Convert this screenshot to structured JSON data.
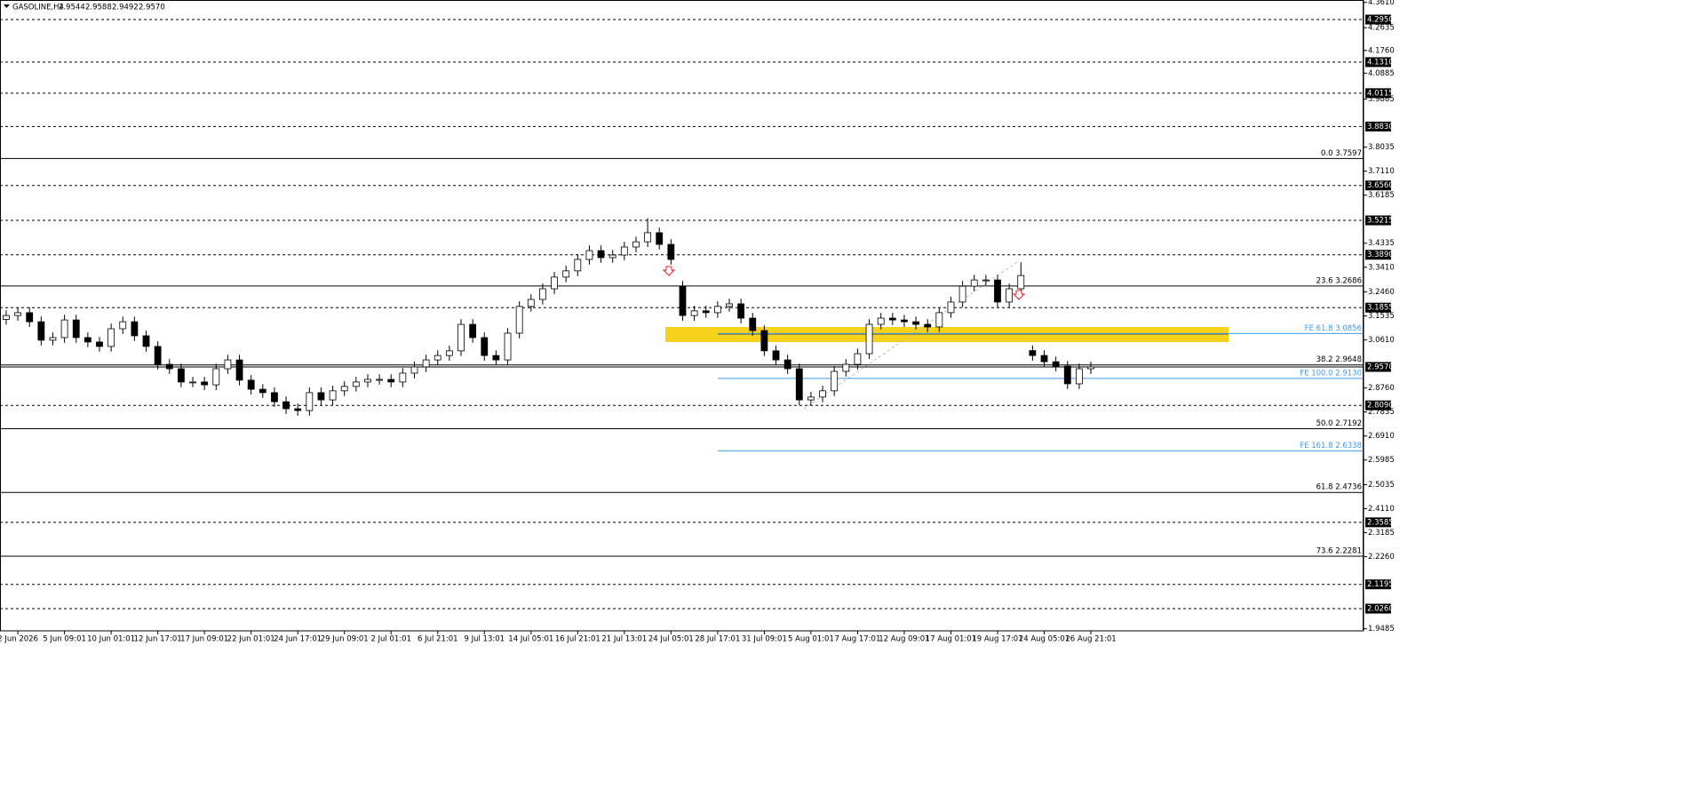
{
  "chart_data": {
    "type": "candlestick",
    "title": "GASOLINE,H4",
    "header_values": [
      {
        "value": 2.9544,
        "label": "2.9544"
      },
      {
        "value": 2.9588,
        "label": "2.9588"
      },
      {
        "value": 2.9492,
        "label": "2.9492"
      },
      {
        "value": 2.957,
        "label": "2.9570"
      }
    ],
    "xlim": [
      -0.53,
      116.38
    ],
    "ylim": [
      1.9405,
      4.3703
    ],
    "xticks": [
      {
        "value": 1,
        "label": "2 Jun 2026"
      },
      {
        "value": 5,
        "label": "5 Jun 09:01"
      },
      {
        "value": 9,
        "label": "10 Jun 01:01"
      },
      {
        "value": 13,
        "label": "12 Jun 17:01"
      },
      {
        "value": 17,
        "label": "17 Jun 09:01"
      },
      {
        "value": 21,
        "label": "22 Jun 01:01"
      },
      {
        "value": 25,
        "label": "24 Jun 17:01"
      },
      {
        "value": 29,
        "label": "29 Jun 09:01"
      },
      {
        "value": 33,
        "label": "2 Jul 01:01"
      },
      {
        "value": 37,
        "label": "6 Jul 21:01"
      },
      {
        "value": 41,
        "label": "9 Jul 13:01"
      },
      {
        "value": 45,
        "label": "14 Jul 05:01"
      },
      {
        "value": 49,
        "label": "16 Jul 21:01"
      },
      {
        "value": 53,
        "label": "21 Jul 13:01"
      },
      {
        "value": 57,
        "label": "24 Jul 05:01"
      },
      {
        "value": 61,
        "label": "28 Jul 17:01"
      },
      {
        "value": 65,
        "label": "31 Jul 09:01"
      },
      {
        "value": 69,
        "label": "5 Aug 01:01"
      },
      {
        "value": 73,
        "label": "7 Aug 17:01"
      },
      {
        "value": 77,
        "label": "12 Aug 09:01"
      },
      {
        "value": 81,
        "label": "17 Aug 01:01"
      },
      {
        "value": 85,
        "label": "19 Aug 17:01"
      },
      {
        "value": 89,
        "label": "24 Aug 05:01"
      },
      {
        "value": 93,
        "label": "26 Aug 21:01"
      }
    ],
    "yticks": [
      {
        "value": 4.361,
        "label": "4.3610"
      },
      {
        "value": 4.2635,
        "label": "4.2635"
      },
      {
        "value": 4.176,
        "label": "4.1760"
      },
      {
        "value": 4.0885,
        "label": "4.0885"
      },
      {
        "value": 3.9885,
        "label": "3.9885"
      },
      {
        "value": 3.8035,
        "label": "3.8035"
      },
      {
        "value": 3.711,
        "label": "3.7110"
      },
      {
        "value": 3.6185,
        "label": "3.6185"
      },
      {
        "value": 3.4335,
        "label": "3.4335"
      },
      {
        "value": 3.341,
        "label": "3.3410"
      },
      {
        "value": 3.246,
        "label": "3.2460"
      },
      {
        "value": 3.1535,
        "label": "3.1535"
      },
      {
        "value": 3.061,
        "label": "3.0610"
      },
      {
        "value": 2.876,
        "label": "2.8760"
      },
      {
        "value": 2.7835,
        "label": "2.7835"
      },
      {
        "value": 2.691,
        "label": "2.6910"
      },
      {
        "value": 2.5985,
        "label": "2.5985"
      },
      {
        "value": 2.5035,
        "label": "2.5035"
      },
      {
        "value": 2.411,
        "label": "2.4110"
      },
      {
        "value": 2.3185,
        "label": "2.3185"
      },
      {
        "value": 2.226,
        "label": "2.2260"
      },
      {
        "value": 1.9485,
        "label": "1.9485"
      }
    ],
    "levels": [
      {
        "value": 4.295,
        "label": "4.2950"
      },
      {
        "value": 4.131,
        "label": "4.1310"
      },
      {
        "value": 4.0115,
        "label": "4.0115"
      },
      {
        "value": 3.883,
        "label": "3.8830"
      },
      {
        "value": 3.656,
        "label": "3.6560"
      },
      {
        "value": 3.5215,
        "label": "3.5215"
      },
      {
        "value": 3.389,
        "label": "3.3890"
      },
      {
        "value": 3.1855,
        "label": "3.1855"
      },
      {
        "value": 2.809,
        "label": "2.8090"
      },
      {
        "value": 2.3585,
        "label": "2.3585"
      },
      {
        "value": 2.1195,
        "label": "2.1195"
      },
      {
        "value": 2.026,
        "label": "2.0260"
      }
    ],
    "current_price": {
      "value": 2.957,
      "label": "2.9570"
    },
    "fibonacci": [
      {
        "value": 3.7597,
        "label": "0.0 3.7597"
      },
      {
        "value": 3.2686,
        "label": "23.6 3.2686"
      },
      {
        "value": 2.9648,
        "label": "38.2 2.9648"
      },
      {
        "value": 2.7192,
        "label": "50.0 2.7192"
      },
      {
        "value": 2.4736,
        "label": "61.8 2.4736"
      },
      {
        "value": 2.2281,
        "label": "73.6 2.2281"
      }
    ],
    "expansion_color": "#3d9be9",
    "expansion": [
      {
        "value": 3.0856,
        "label": "FE 61.8 3.0856"
      },
      {
        "value": 2.913,
        "label": "FE 100.0 2.9130"
      },
      {
        "value": 2.6338,
        "label": "FE 161.8 2.6338"
      }
    ],
    "up_color": "#ffffff",
    "down_color": "#000000",
    "open": [
      3.14,
      3.155,
      3.166,
      3.131,
      3.06,
      3.07,
      3.138,
      3.07,
      3.053,
      3.036,
      3.104,
      3.131,
      3.077,
      3.036,
      2.967,
      2.95,
      2.899,
      2.899,
      2.888,
      2.95,
      2.984,
      2.906,
      2.871,
      2.858,
      2.823,
      2.796,
      2.789,
      2.858,
      2.83,
      2.865,
      2.882,
      2.899,
      2.909,
      2.909,
      2.899,
      2.933,
      2.957,
      2.984,
      3.001,
      3.019,
      3.121,
      3.07,
      3.001,
      2.984,
      3.087,
      3.19,
      3.217,
      3.258,
      3.303,
      3.327,
      3.371,
      3.405,
      3.378,
      3.388,
      3.419,
      3.439,
      3.474,
      3.429,
      3.268,
      3.155,
      3.173,
      3.166,
      3.19,
      3.2,
      3.145,
      3.097,
      3.019,
      2.984,
      2.95,
      2.83,
      2.841,
      2.865,
      2.94,
      2.967,
      3.008,
      3.121,
      3.145,
      3.138,
      3.131,
      3.121,
      3.111,
      3.166,
      3.207,
      3.268,
      3.292,
      3.292,
      3.207,
      3.258,
      3.02,
      3.001,
      2.977,
      2.96,
      2.892,
      2.95
    ],
    "high": [
      3.175,
      3.186,
      3.186,
      3.151,
      3.09,
      3.158,
      3.158,
      3.09,
      3.073,
      3.124,
      3.151,
      3.151,
      3.097,
      3.056,
      2.987,
      2.97,
      2.919,
      2.919,
      2.97,
      3.004,
      3.004,
      2.926,
      2.891,
      2.878,
      2.843,
      2.816,
      2.878,
      2.878,
      2.885,
      2.902,
      2.919,
      2.929,
      2.929,
      2.929,
      2.953,
      2.977,
      3.004,
      3.021,
      3.039,
      3.141,
      3.141,
      3.09,
      3.021,
      3.107,
      3.21,
      3.237,
      3.278,
      3.323,
      3.347,
      3.391,
      3.425,
      3.425,
      3.408,
      3.439,
      3.459,
      3.53,
      3.494,
      3.449,
      3.288,
      3.193,
      3.193,
      3.21,
      3.22,
      3.22,
      3.165,
      3.117,
      3.039,
      3.004,
      2.97,
      2.861,
      2.885,
      2.96,
      2.987,
      3.028,
      3.141,
      3.165,
      3.165,
      3.158,
      3.151,
      3.141,
      3.186,
      3.227,
      3.288,
      3.312,
      3.312,
      3.312,
      3.278,
      3.36,
      3.04,
      3.021,
      2.997,
      2.98,
      2.97,
      2.977
    ],
    "low": [
      3.12,
      3.135,
      3.111,
      3.04,
      3.04,
      3.05,
      3.05,
      3.033,
      3.016,
      3.016,
      3.084,
      3.057,
      3.016,
      2.947,
      2.93,
      2.879,
      2.879,
      2.868,
      2.868,
      2.93,
      2.886,
      2.851,
      2.838,
      2.803,
      2.776,
      2.769,
      2.769,
      2.81,
      2.81,
      2.845,
      2.862,
      2.879,
      2.889,
      2.879,
      2.879,
      2.913,
      2.937,
      2.964,
      2.981,
      2.999,
      3.05,
      2.981,
      2.964,
      2.964,
      3.067,
      3.17,
      3.197,
      3.238,
      3.283,
      3.307,
      3.351,
      3.358,
      3.358,
      3.368,
      3.399,
      3.419,
      3.409,
      3.351,
      3.135,
      3.135,
      3.146,
      3.146,
      3.17,
      3.125,
      3.077,
      2.999,
      2.964,
      2.93,
      2.81,
      2.81,
      2.821,
      2.845,
      2.92,
      2.947,
      2.988,
      3.101,
      3.118,
      3.111,
      3.101,
      3.091,
      3.091,
      3.146,
      3.187,
      3.248,
      3.272,
      3.187,
      3.187,
      3.238,
      2.981,
      2.957,
      2.94,
      2.872,
      2.872,
      2.93
    ],
    "close": [
      3.155,
      3.166,
      3.131,
      3.06,
      3.07,
      3.138,
      3.07,
      3.053,
      3.036,
      3.104,
      3.131,
      3.077,
      3.036,
      2.967,
      2.95,
      2.899,
      2.899,
      2.888,
      2.95,
      2.984,
      2.906,
      2.871,
      2.858,
      2.823,
      2.796,
      2.789,
      2.858,
      2.83,
      2.865,
      2.882,
      2.899,
      2.909,
      2.909,
      2.899,
      2.933,
      2.957,
      2.984,
      3.001,
      3.019,
      3.121,
      3.07,
      3.001,
      2.984,
      3.087,
      3.19,
      3.217,
      3.258,
      3.303,
      3.327,
      3.371,
      3.405,
      3.378,
      3.388,
      3.419,
      3.439,
      3.474,
      3.429,
      3.371,
      3.155,
      3.173,
      3.166,
      3.19,
      3.2,
      3.145,
      3.097,
      3.019,
      2.984,
      2.95,
      2.83,
      2.841,
      2.865,
      2.94,
      2.967,
      3.008,
      3.121,
      3.145,
      3.138,
      3.131,
      3.121,
      3.111,
      3.166,
      3.207,
      3.268,
      3.292,
      3.292,
      3.207,
      3.258,
      3.309,
      3.001,
      2.977,
      2.96,
      2.892,
      2.95,
      2.957
    ]
  }
}
